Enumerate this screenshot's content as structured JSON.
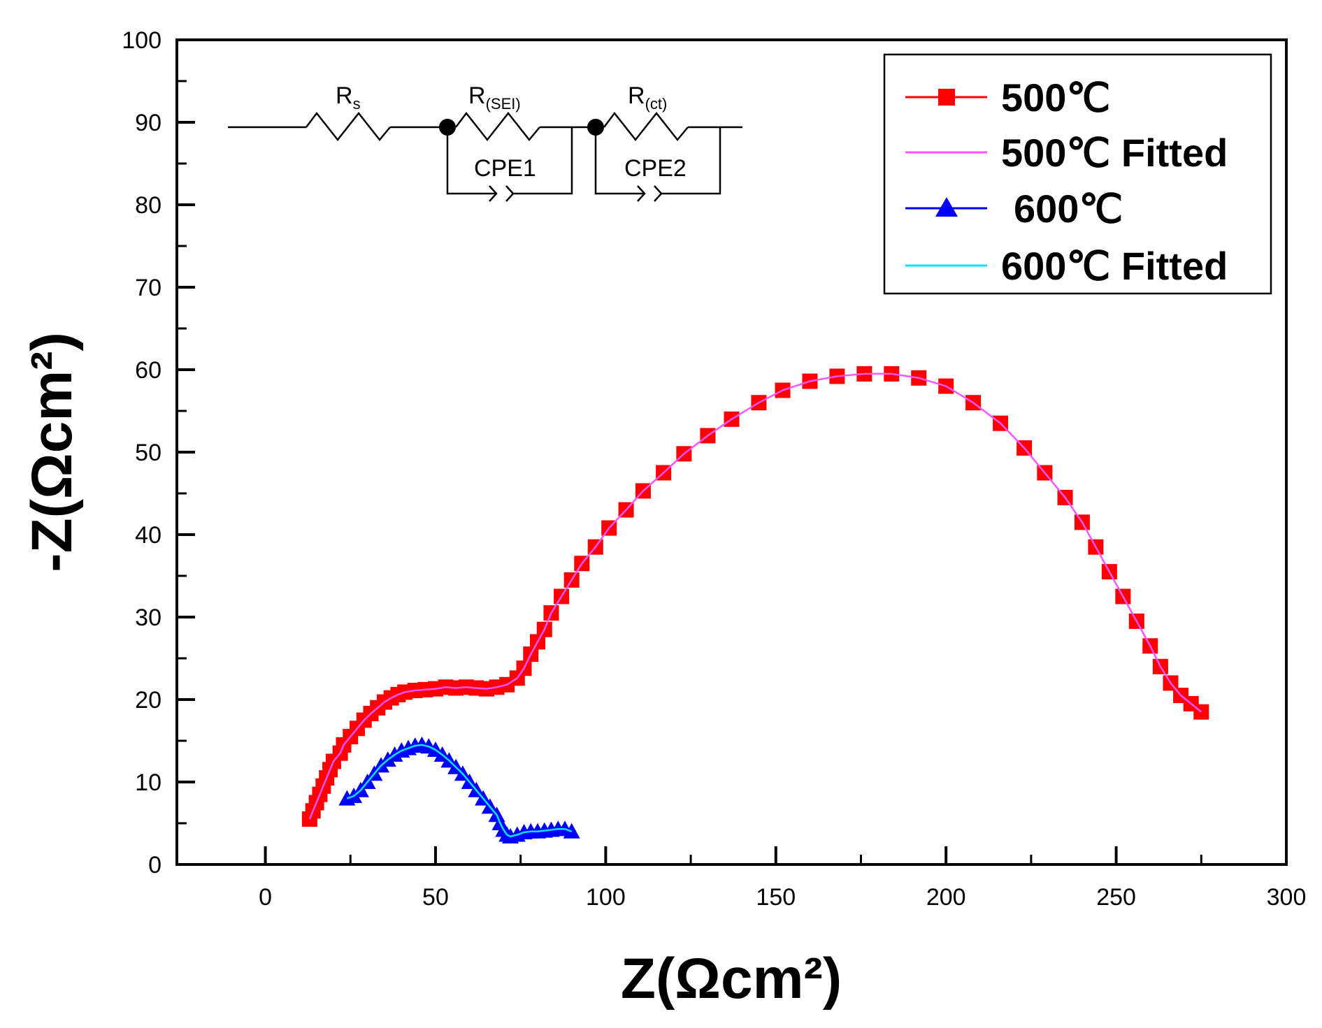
{
  "chart_data": {
    "type": "scatter",
    "title": "",
    "xlabel": "Z(Ωcm²)",
    "ylabel": "-Z(Ωcm²)",
    "xlim": [
      -26,
      300
    ],
    "ylim": [
      0,
      100
    ],
    "xticks": [
      "0",
      "50",
      "100",
      "150",
      "200",
      "250",
      "300"
    ],
    "yticks": [
      "0",
      "10",
      "20",
      "30",
      "40",
      "50",
      "60",
      "70",
      "80",
      "90",
      "100"
    ],
    "grid": false,
    "legend_position": "top-right",
    "series": [
      {
        "name": "500℃",
        "color": "#ff0000",
        "marker": "square",
        "points": [
          [
            13,
            5.5
          ],
          [
            14,
            6.5
          ],
          [
            15,
            7.5
          ],
          [
            16,
            8.5
          ],
          [
            17,
            9.5
          ],
          [
            18,
            10.5
          ],
          [
            19,
            11.5
          ],
          [
            20,
            12.5
          ],
          [
            22,
            13.5
          ],
          [
            23,
            14.5
          ],
          [
            25,
            15.5
          ],
          [
            27,
            16.5
          ],
          [
            29,
            17.5
          ],
          [
            31,
            18.3
          ],
          [
            33,
            19.0
          ],
          [
            35,
            19.7
          ],
          [
            37,
            20.2
          ],
          [
            39,
            20.6
          ],
          [
            41,
            20.9
          ],
          [
            44,
            21.1
          ],
          [
            47,
            21.2
          ],
          [
            50,
            21.3
          ],
          [
            53,
            21.5
          ],
          [
            56,
            21.4
          ],
          [
            59,
            21.5
          ],
          [
            62,
            21.4
          ],
          [
            65,
            21.3
          ],
          [
            68,
            21.5
          ],
          [
            71,
            21.8
          ],
          [
            74,
            22.6
          ],
          [
            76,
            23.8
          ],
          [
            78,
            25.5
          ],
          [
            80,
            27.0
          ],
          [
            82,
            28.5
          ],
          [
            84,
            30.5
          ],
          [
            87,
            32.5
          ],
          [
            90,
            34.5
          ],
          [
            93,
            36.5
          ],
          [
            97,
            38.5
          ],
          [
            101,
            40.8
          ],
          [
            106,
            43.0
          ],
          [
            111,
            45.3
          ],
          [
            117,
            47.5
          ],
          [
            123,
            49.8
          ],
          [
            130,
            52.0
          ],
          [
            137,
            54.0
          ],
          [
            145,
            56.0
          ],
          [
            152,
            57.5
          ],
          [
            160,
            58.6
          ],
          [
            168,
            59.2
          ],
          [
            176,
            59.5
          ],
          [
            184,
            59.5
          ],
          [
            192,
            59.0
          ],
          [
            200,
            58.0
          ],
          [
            208,
            56.0
          ],
          [
            216,
            53.5
          ],
          [
            223,
            50.5
          ],
          [
            229,
            47.5
          ],
          [
            235,
            44.5
          ],
          [
            240,
            41.5
          ],
          [
            244,
            38.5
          ],
          [
            248,
            35.5
          ],
          [
            252,
            32.5
          ],
          [
            256,
            29.5
          ],
          [
            260,
            26.5
          ],
          [
            263,
            24.0
          ],
          [
            266,
            22.0
          ],
          [
            269,
            20.5
          ],
          [
            272,
            19.5
          ],
          [
            275,
            18.5
          ]
        ]
      },
      {
        "name": "500℃ Fitted",
        "color": "#ff55ff",
        "marker": "none"
      },
      {
        "name": "600℃",
        "color": "#0000ff",
        "marker": "triangle",
        "points": [
          [
            24,
            8.0
          ],
          [
            26,
            8.3
          ],
          [
            28,
            9.0
          ],
          [
            30,
            10.0
          ],
          [
            32,
            11.0
          ],
          [
            34,
            12.0
          ],
          [
            36,
            12.7
          ],
          [
            38,
            13.3
          ],
          [
            40,
            13.8
          ],
          [
            42,
            14.1
          ],
          [
            44,
            14.4
          ],
          [
            46,
            14.5
          ],
          [
            48,
            14.3
          ],
          [
            50,
            13.9
          ],
          [
            52,
            13.3
          ],
          [
            54,
            12.6
          ],
          [
            56,
            11.8
          ],
          [
            58,
            11.0
          ],
          [
            60,
            10.0
          ],
          [
            62,
            9.0
          ],
          [
            64,
            8.0
          ],
          [
            66,
            7.0
          ],
          [
            68,
            6.0
          ],
          [
            69,
            5.0
          ],
          [
            70,
            4.2
          ],
          [
            71,
            3.6
          ],
          [
            72,
            3.4
          ],
          [
            74,
            3.6
          ],
          [
            76,
            3.9
          ],
          [
            78,
            4.0
          ],
          [
            80,
            4.0
          ],
          [
            82,
            4.1
          ],
          [
            84,
            4.2
          ],
          [
            86,
            4.3
          ],
          [
            88,
            4.3
          ],
          [
            90,
            4.0
          ]
        ]
      },
      {
        "name": "600℃ Fitted",
        "color": "#00e5ee",
        "marker": "none"
      }
    ]
  },
  "circuit": {
    "labels": [
      "R",
      "s",
      "R",
      "(SEI)",
      "R",
      "(ct)",
      "CPE1",
      "CPE2"
    ]
  }
}
